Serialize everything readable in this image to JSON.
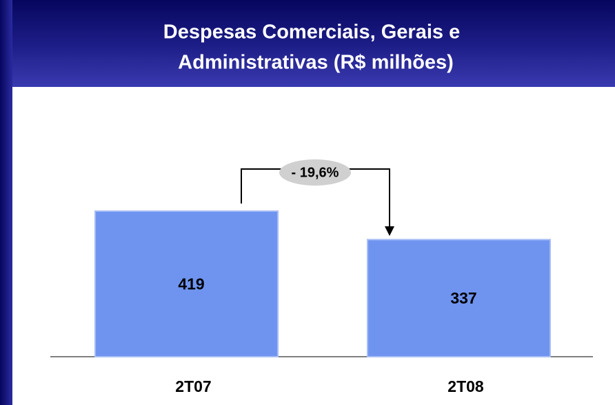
{
  "chart_data": {
    "type": "bar",
    "title": [
      "Despesas Comerciais, Gerais e",
      "Administrativas (R$ milhões)"
    ],
    "categories": [
      "2T07",
      "2T08"
    ],
    "values": [
      419,
      337
    ],
    "color": "#6f94f0",
    "annotation": "- 19,6%"
  }
}
